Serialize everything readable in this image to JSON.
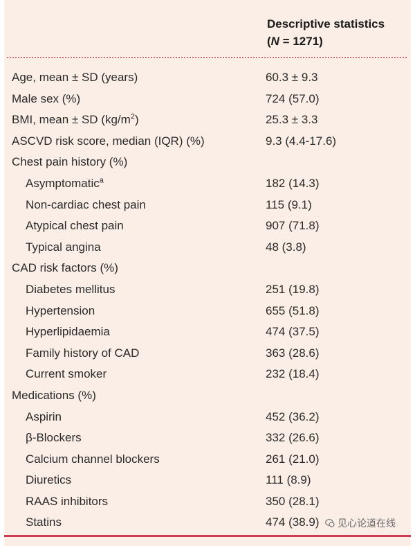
{
  "header": {
    "title_line1": "Descriptive statistics",
    "title_open": "(",
    "title_n": "N",
    "title_rest": " = 1271)"
  },
  "rows": [
    {
      "label": "Age, mean ± SD (years)",
      "value": "60.3 ± 9.3"
    },
    {
      "label": "Male sex (%)",
      "value": "724 (57.0)"
    },
    {
      "label_pre": "BMI, mean ± SD (kg/m",
      "label_sup": "2",
      "label_post": ")",
      "value": "25.3 ± 3.3"
    },
    {
      "label": "ASCVD risk score, median (IQR) (%)",
      "value": "9.3 (4.4-17.6)"
    },
    {
      "label": "Chest pain history (%)",
      "value": ""
    },
    {
      "label_pre": "Asymptomatic",
      "label_sup": "a",
      "value": "182 (14.3)"
    },
    {
      "label": "Non-cardiac chest pain",
      "value": "115 (9.1)"
    },
    {
      "label": "Atypical chest pain",
      "value": "907 (71.8)"
    },
    {
      "label": "Typical angina",
      "value": "48 (3.8)"
    },
    {
      "label": "CAD risk factors (%)",
      "value": ""
    },
    {
      "label": "Diabetes mellitus",
      "value": "251 (19.8)"
    },
    {
      "label": "Hypertension",
      "value": "655 (51.8)"
    },
    {
      "label": "Hyperlipidaemia",
      "value": "474 (37.5)"
    },
    {
      "label": "Family history of CAD",
      "value": "363 (28.6)"
    },
    {
      "label": "Current smoker",
      "value": "232 (18.4)"
    },
    {
      "label": "Medications (%)",
      "value": ""
    },
    {
      "label": "Aspirin",
      "value": "452 (36.2)"
    },
    {
      "label": "β-Blockers",
      "value": "332 (26.6)"
    },
    {
      "label": "Calcium channel blockers",
      "value": "261 (21.0)"
    },
    {
      "label": "Diuretics",
      "value": "111 (8.9)"
    },
    {
      "label": "RAAS inhibitors",
      "value": "350 (28.1)"
    },
    {
      "label": "Statins",
      "value": "474 (38.9)"
    }
  ],
  "watermark": {
    "text": "见心论道在线",
    "icon": "chat-bubble-icon"
  },
  "colors": {
    "background": "#fbeee6",
    "rule": "#cf3c52",
    "dotted_rule": "#d26a78"
  }
}
